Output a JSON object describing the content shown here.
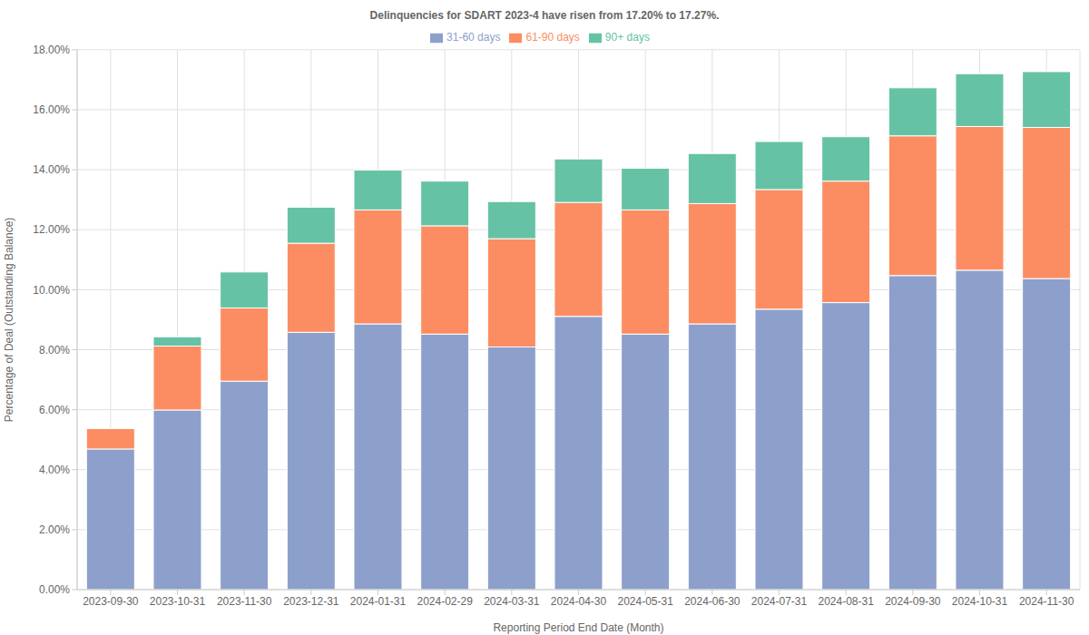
{
  "chart_data": {
    "type": "bar",
    "title": "Delinquencies for SDART 2023-4 have risen from 17.20% to 17.27%.",
    "x_label": "Reporting Period End Date (Month)",
    "y_label": "Percentage of Deal (Outstanding Balance)",
    "categories": [
      "2023-09-30",
      "2023-10-31",
      "2023-11-30",
      "2023-12-31",
      "2024-01-31",
      "2024-02-29",
      "2024-03-31",
      "2024-04-30",
      "2024-05-31",
      "2024-06-30",
      "2024-07-31",
      "2024-08-31",
      "2024-09-30",
      "2024-10-31",
      "2024-11-30"
    ],
    "series": [
      {
        "name": "31-60 days",
        "color": "#8da0cb",
        "values": [
          4.69,
          5.99,
          6.95,
          8.58,
          8.86,
          8.52,
          8.09,
          9.11,
          8.52,
          8.86,
          9.35,
          9.57,
          10.47,
          10.65,
          10.37
        ]
      },
      {
        "name": "61-90 days",
        "color": "#fc8d62",
        "values": [
          0.68,
          2.13,
          2.44,
          2.97,
          3.8,
          3.61,
          3.61,
          3.8,
          4.14,
          4.01,
          3.99,
          4.05,
          4.66,
          4.79,
          5.04
        ]
      },
      {
        "name": "90+ days",
        "color": "#66c2a5",
        "values": [
          0,
          0.31,
          1.2,
          1.2,
          1.33,
          1.49,
          1.24,
          1.45,
          1.39,
          1.67,
          1.6,
          1.48,
          1.6,
          1.76,
          1.86
        ]
      }
    ],
    "stacked": true,
    "grid": true,
    "legend": "top",
    "ylim": [
      0,
      18
    ],
    "yticks": [
      {
        "value": 0,
        "label": "0.00%"
      },
      {
        "value": 2,
        "label": "2.00%"
      },
      {
        "value": 4,
        "label": "4.00%"
      },
      {
        "value": 6,
        "label": "6.00%"
      },
      {
        "value": 8,
        "label": "8.00%"
      },
      {
        "value": 10,
        "label": "10.00%"
      },
      {
        "value": 12,
        "label": "12.00%"
      },
      {
        "value": 14,
        "label": "14.00%"
      },
      {
        "value": 16,
        "label": "16.00%"
      },
      {
        "value": 18,
        "label": "18.00%"
      }
    ]
  }
}
